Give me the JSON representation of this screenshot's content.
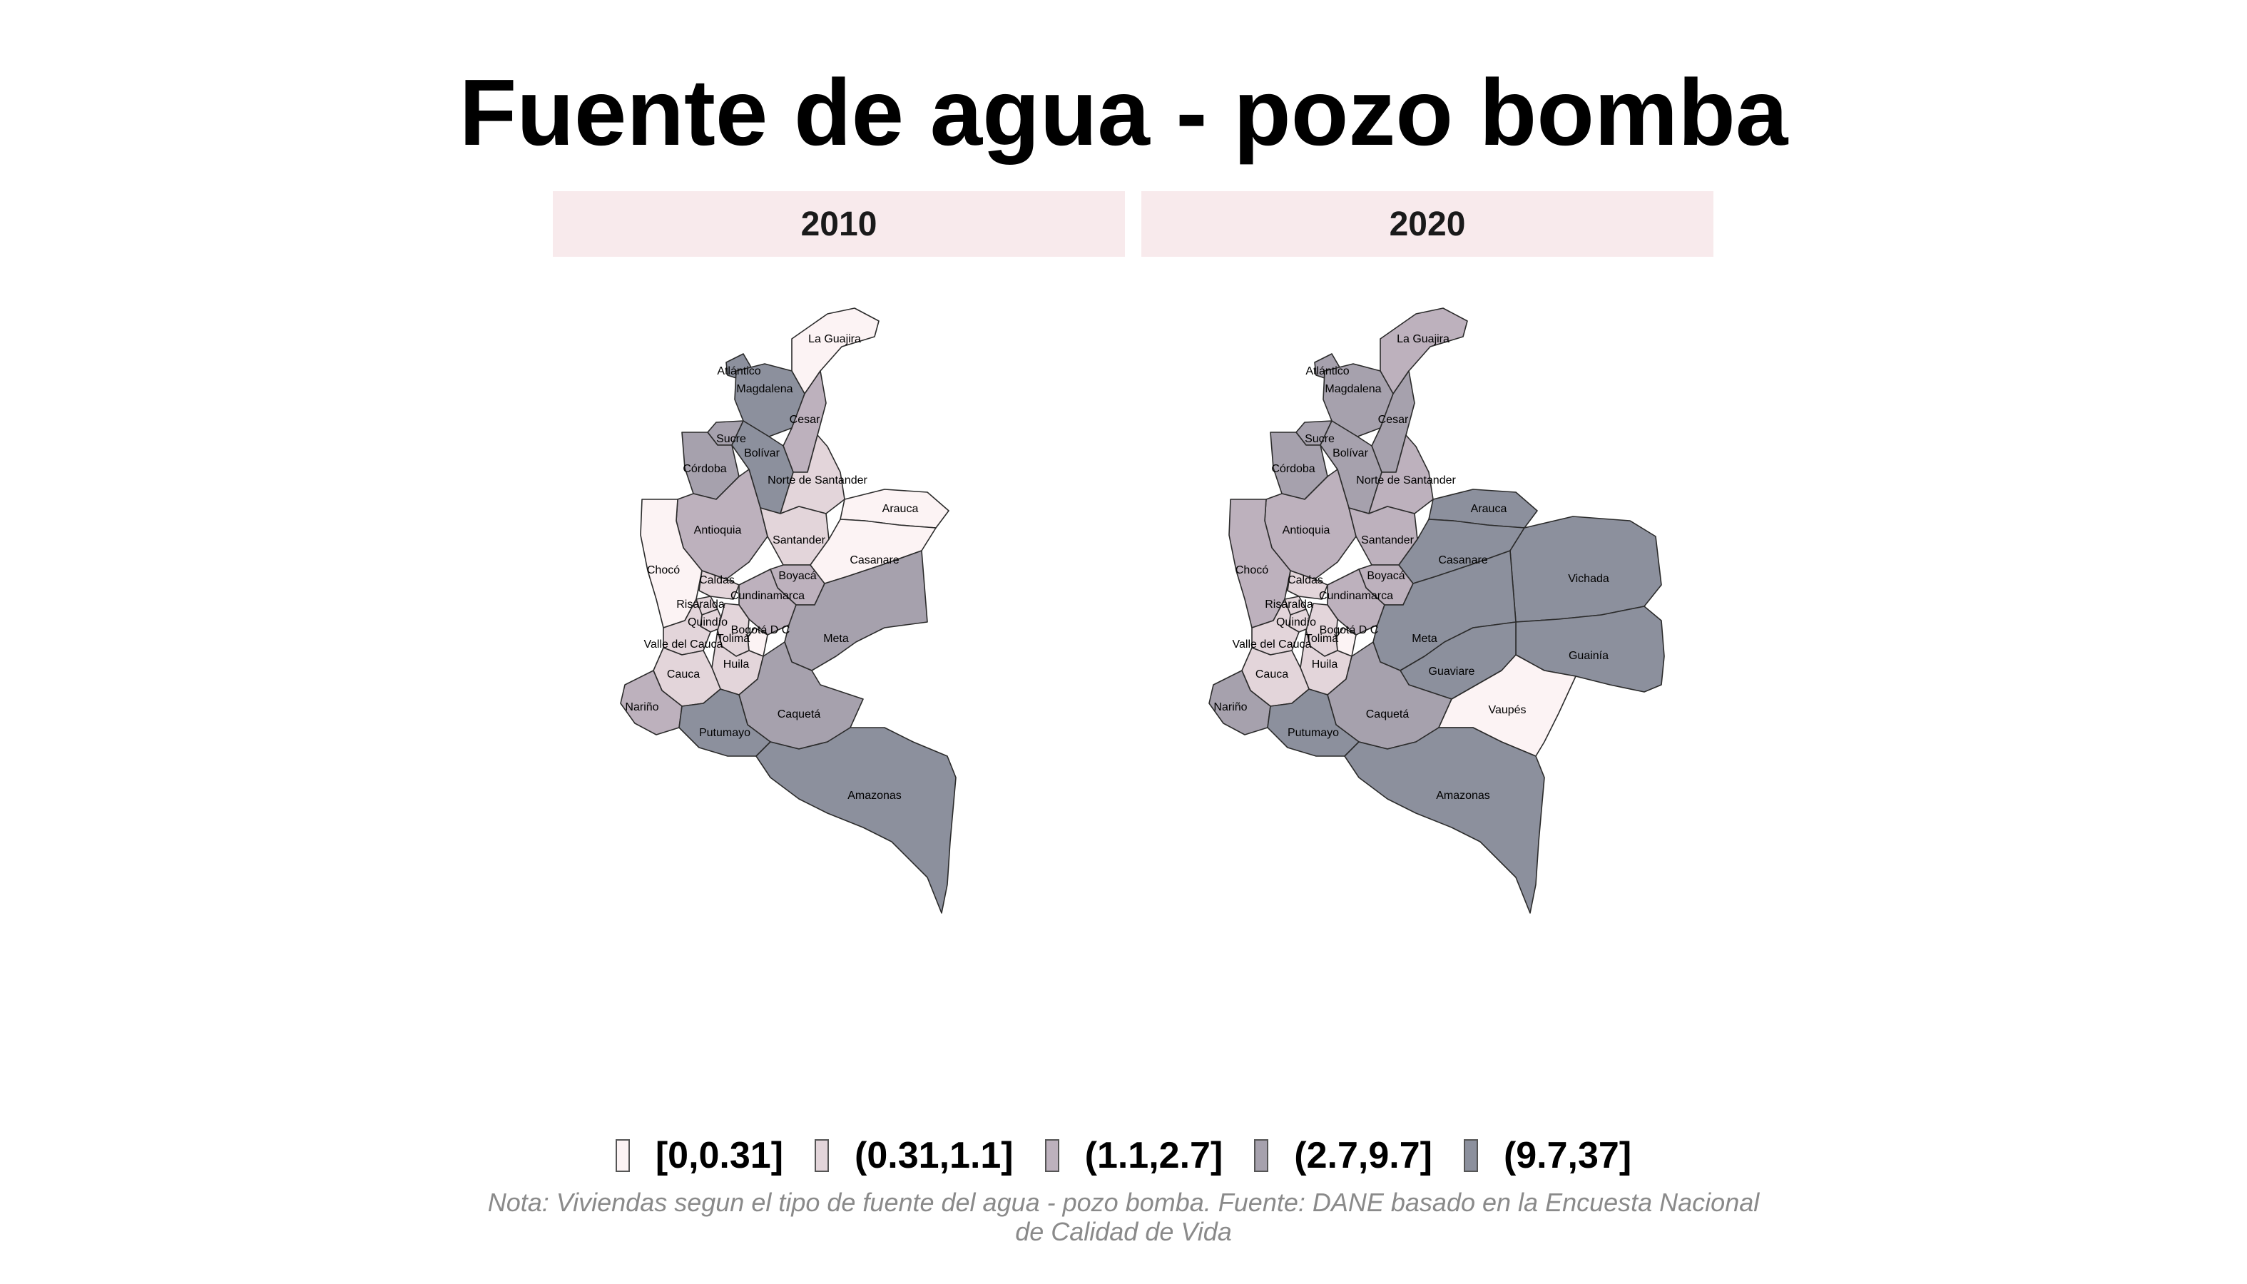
{
  "title": "Fuente de agua - pozo bomba",
  "caption": "Nota: Viviendas segun el tipo de fuente del agua - pozo bomba. Fuente: DANE basado en la Encuesta Nacional de Calidad de Vida",
  "colors": {
    "class_1": "#fcf3f4",
    "class_2": "#e3d5da",
    "class_3": "#bdb1bd",
    "class_4": "#a6a1ad",
    "class_5": "#8c909d",
    "strip_background": "#f8eaec"
  },
  "legend": [
    {
      "label": "[0,0.31]",
      "class": "class_1"
    },
    {
      "label": "(0.31,1.1]",
      "class": "class_2"
    },
    {
      "label": "(1.1,2.7]",
      "class": "class_3"
    },
    {
      "label": "(2.7,9.7]",
      "class": "class_4"
    },
    {
      "label": "(9.7,37]",
      "class": "class_5"
    }
  ],
  "panels": [
    {
      "year": "2010",
      "departments": [
        {
          "name": "La Guajira",
          "class": "class_1"
        },
        {
          "name": "Atlántico",
          "class": "class_5"
        },
        {
          "name": "Magdalena",
          "class": "class_5"
        },
        {
          "name": "Cesar",
          "class": "class_3"
        },
        {
          "name": "Sucre",
          "class": "class_4"
        },
        {
          "name": "Bolívar",
          "class": "class_5"
        },
        {
          "name": "Córdoba",
          "class": "class_4"
        },
        {
          "name": "Norte de Santander",
          "class": "class_2"
        },
        {
          "name": "Antioquia",
          "class": "class_3"
        },
        {
          "name": "Santander",
          "class": "class_2"
        },
        {
          "name": "Arauca",
          "class": "class_1"
        },
        {
          "name": "Chocó",
          "class": "class_1"
        },
        {
          "name": "Boyacá",
          "class": "class_3"
        },
        {
          "name": "Casanare",
          "class": "class_1"
        },
        {
          "name": "Caldas",
          "class": "class_2"
        },
        {
          "name": "Risaralda",
          "class": "class_2"
        },
        {
          "name": "Cundinamarca",
          "class": "class_3"
        },
        {
          "name": "Quindío",
          "class": "class_2"
        },
        {
          "name": "Bogotá D C",
          "class": "class_1"
        },
        {
          "name": "Tolima",
          "class": "class_2"
        },
        {
          "name": "Valle del Cauca",
          "class": "class_2"
        },
        {
          "name": "Meta",
          "class": "class_4"
        },
        {
          "name": "Huila",
          "class": "class_2"
        },
        {
          "name": "Cauca",
          "class": "class_2"
        },
        {
          "name": "Nariño",
          "class": "class_3"
        },
        {
          "name": "Caquetá",
          "class": "class_4"
        },
        {
          "name": "Putumayo",
          "class": "class_5"
        },
        {
          "name": "Amazonas",
          "class": "class_5"
        }
      ]
    },
    {
      "year": "2020",
      "departments": [
        {
          "name": "La Guajira",
          "class": "class_3"
        },
        {
          "name": "Atlántico",
          "class": "class_4"
        },
        {
          "name": "Magdalena",
          "class": "class_4"
        },
        {
          "name": "Cesar",
          "class": "class_4"
        },
        {
          "name": "Sucre",
          "class": "class_4"
        },
        {
          "name": "Bolívar",
          "class": "class_4"
        },
        {
          "name": "Córdoba",
          "class": "class_4"
        },
        {
          "name": "Norte de Santander",
          "class": "class_3"
        },
        {
          "name": "Antioquia",
          "class": "class_3"
        },
        {
          "name": "Santander",
          "class": "class_3"
        },
        {
          "name": "Arauca",
          "class": "class_5"
        },
        {
          "name": "Chocó",
          "class": "class_3"
        },
        {
          "name": "Boyacá",
          "class": "class_3"
        },
        {
          "name": "Casanare",
          "class": "class_5"
        },
        {
          "name": "Vichada",
          "class": "class_5"
        },
        {
          "name": "Caldas",
          "class": "class_2"
        },
        {
          "name": "Risaralda",
          "class": "class_2"
        },
        {
          "name": "Cundinamarca",
          "class": "class_3"
        },
        {
          "name": "Quindío",
          "class": "class_2"
        },
        {
          "name": "Bogotá D C",
          "class": "class_1"
        },
        {
          "name": "Tolima",
          "class": "class_2"
        },
        {
          "name": "Valle del Cauca",
          "class": "class_2"
        },
        {
          "name": "Meta",
          "class": "class_5"
        },
        {
          "name": "Guainía",
          "class": "class_5"
        },
        {
          "name": "Huila",
          "class": "class_2"
        },
        {
          "name": "Guaviare",
          "class": "class_5"
        },
        {
          "name": "Cauca",
          "class": "class_2"
        },
        {
          "name": "Nariño",
          "class": "class_4"
        },
        {
          "name": "Caquetá",
          "class": "class_4"
        },
        {
          "name": "Vaupés",
          "class": "class_1"
        },
        {
          "name": "Putumayo",
          "class": "class_5"
        },
        {
          "name": "Amazonas",
          "class": "class_5"
        }
      ]
    }
  ]
}
